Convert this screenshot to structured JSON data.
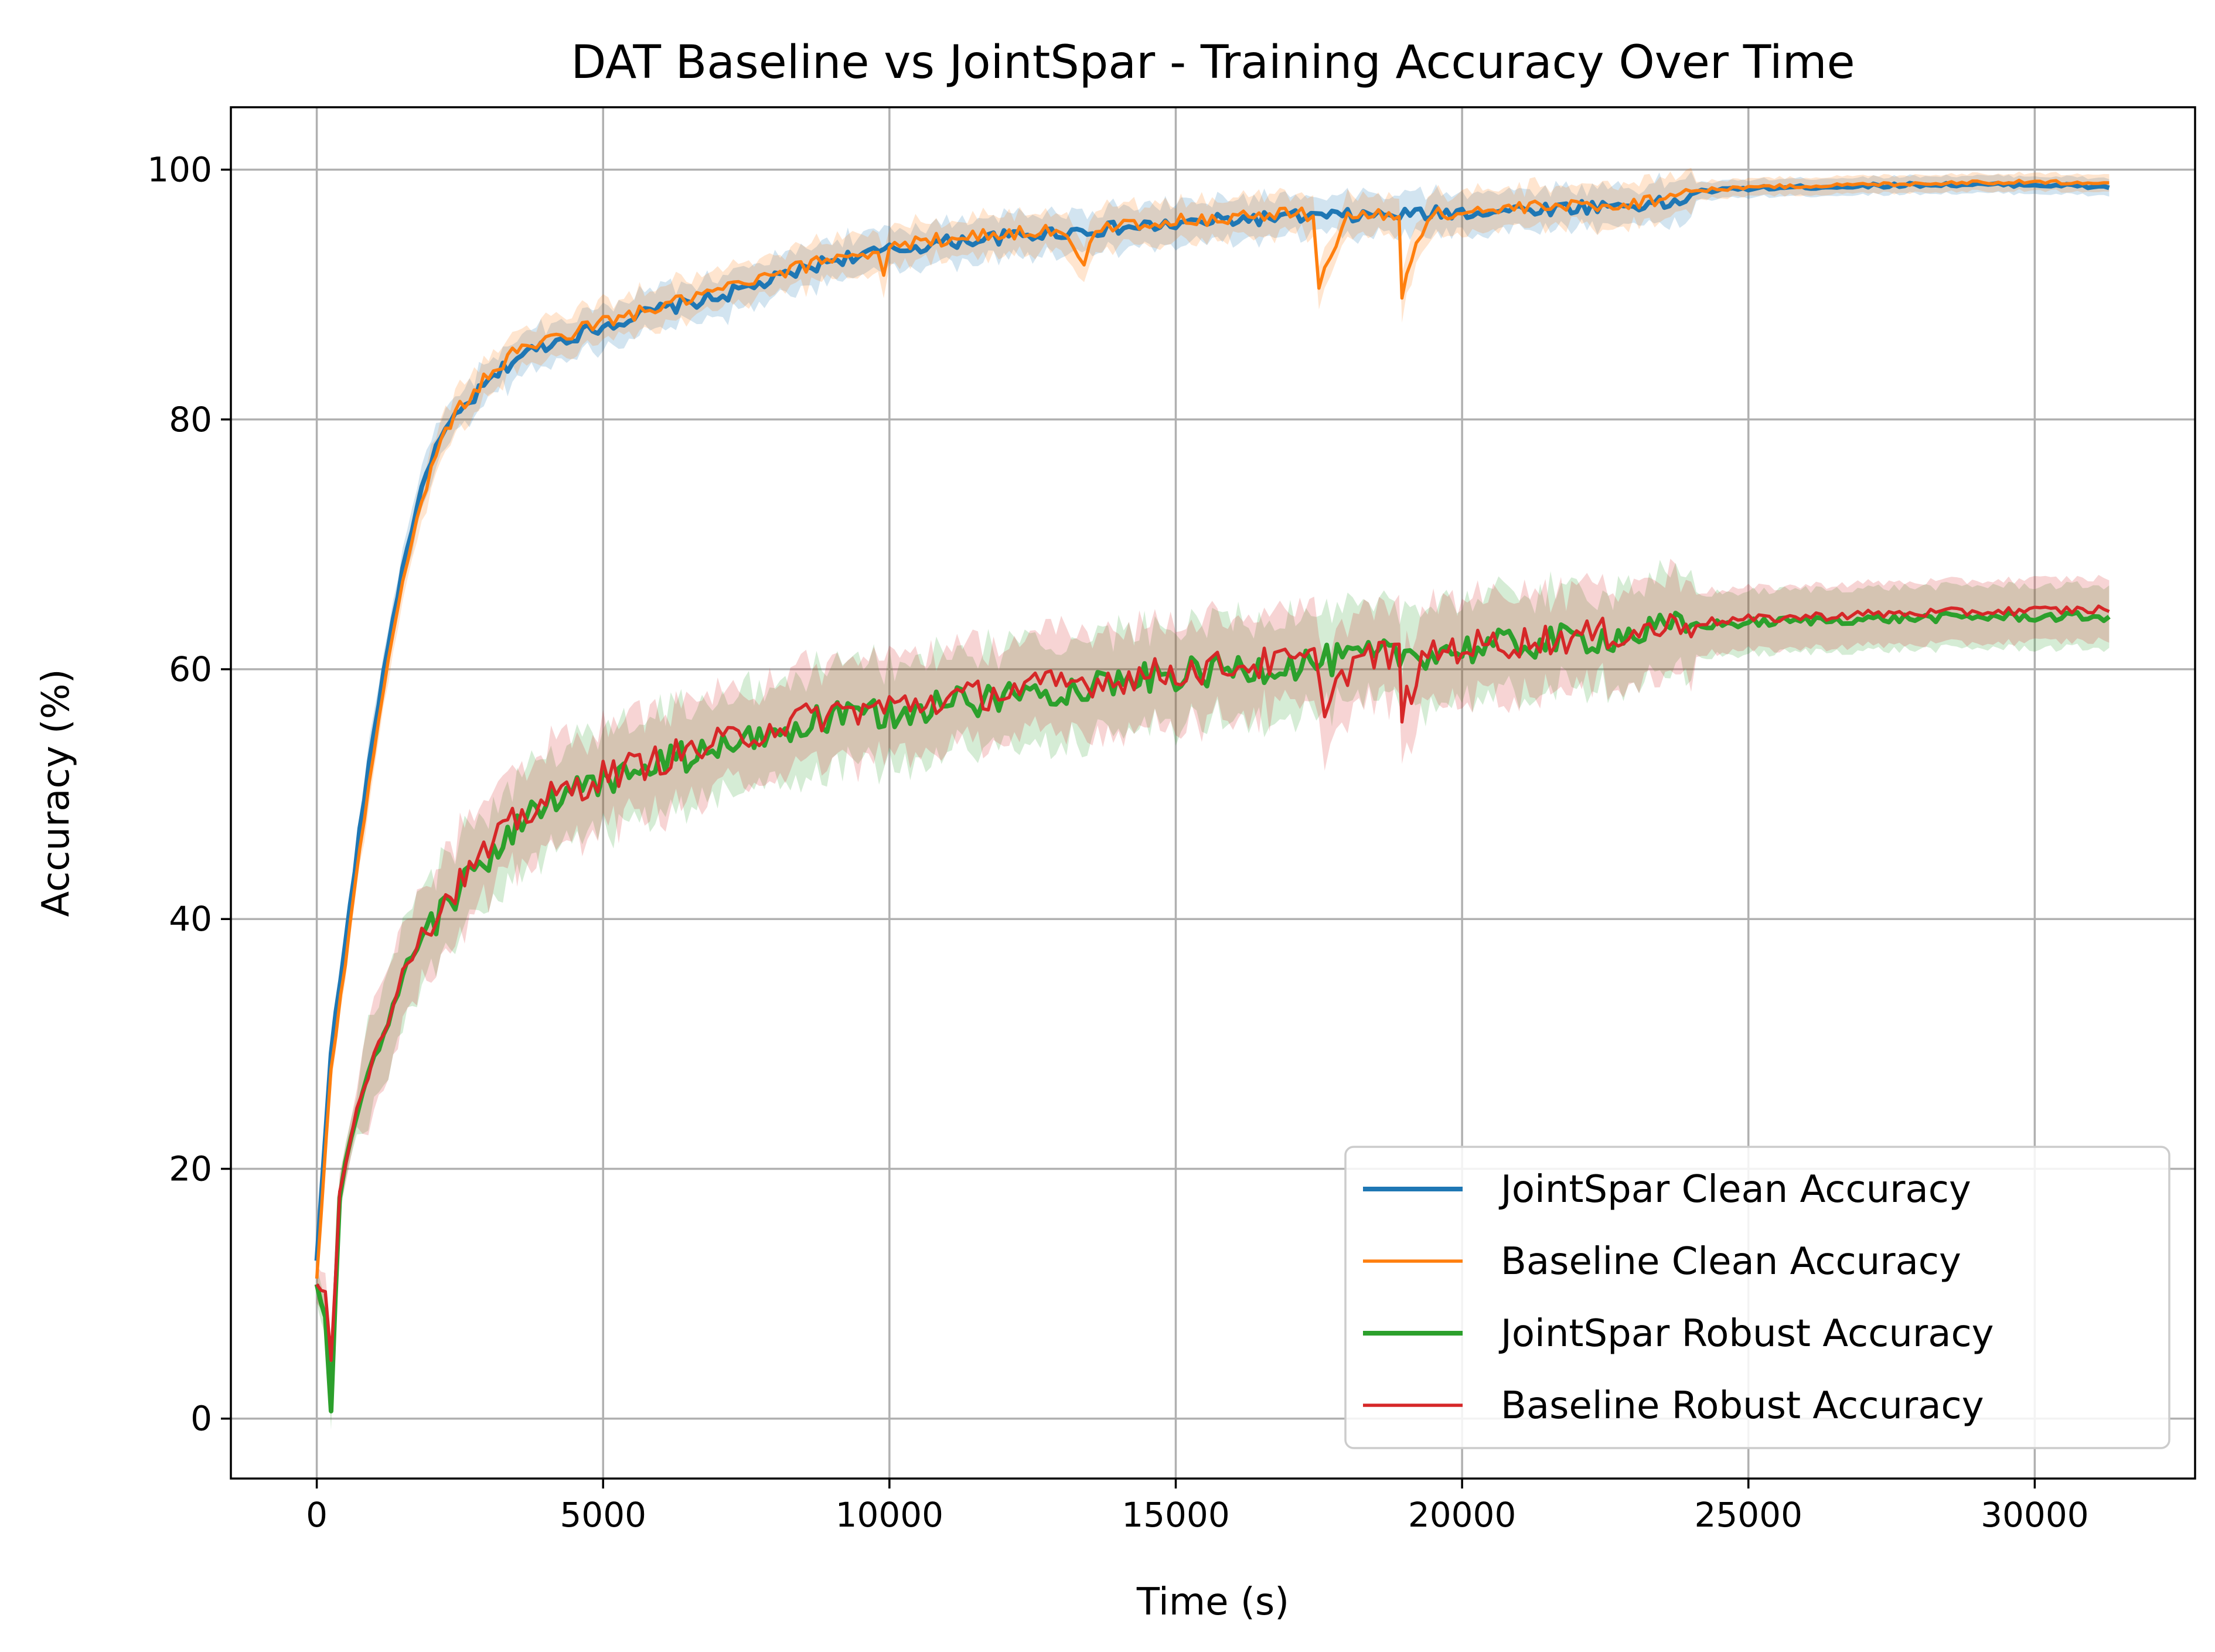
{
  "chart_data": {
    "type": "line",
    "title": "DAT Baseline vs JointSpar - Training Accuracy Over Time",
    "xlabel": "Time (s)",
    "ylabel": "Accuracy (%)",
    "xlim": [
      -1500,
      32800
    ],
    "ylim": [
      -4.8,
      105
    ],
    "xticks": [
      0,
      5000,
      10000,
      15000,
      20000,
      25000,
      30000
    ],
    "xtick_labels": [
      "0",
      "5000",
      "10000",
      "15000",
      "20000",
      "25000",
      "30000"
    ],
    "yticks": [
      0,
      20,
      40,
      60,
      80,
      100
    ],
    "ytick_labels": [
      "0",
      "20",
      "40",
      "60",
      "80",
      "100"
    ],
    "grid": true,
    "legend_position": "bottom-right",
    "series": [
      {
        "name": "JointSpar Clean Accuracy",
        "color": "#1f77b4",
        "x": [
          0,
          250,
          500,
          750,
          1000,
          1250,
          1500,
          1750,
          2000,
          2250,
          2500,
          3000,
          3500,
          4000,
          5000,
          6000,
          7000,
          8000,
          9000,
          10000,
          11000,
          12000,
          12500,
          13000,
          14000,
          15000,
          16000,
          17000,
          18000,
          19000,
          20000,
          21000,
          22000,
          23000,
          23800,
          24000,
          25000,
          26000,
          27000,
          28000,
          29000,
          30000,
          31300
        ],
        "y": [
          12.5,
          29.5,
          38,
          47,
          55,
          62,
          68,
          73,
          77,
          79,
          80.5,
          83,
          85,
          86,
          87.5,
          88.8,
          89.8,
          91.2,
          92.8,
          93.5,
          94.2,
          94.6,
          94.8,
          95,
          95.3,
          95.6,
          96,
          96.2,
          96.3,
          96.4,
          96.6,
          96.8,
          97,
          97.2,
          97.3,
          98.2,
          98.5,
          98.6,
          98.7,
          98.8,
          98.8,
          98.8,
          98.6
        ]
      },
      {
        "name": "Baseline Clean Accuracy",
        "color": "#ff7f0e",
        "x": [
          0,
          250,
          500,
          750,
          1000,
          1250,
          1500,
          1750,
          2000,
          2250,
          2500,
          3000,
          3500,
          4000,
          5000,
          6000,
          7000,
          8000,
          9000,
          9800,
          9900,
          10000,
          11000,
          12000,
          13000,
          13400,
          13600,
          14000,
          15000,
          16000,
          17000,
          17400,
          17500,
          17800,
          18000,
          18900,
          18950,
          19200,
          19500,
          20000,
          21000,
          22000,
          23000,
          24000,
          25000,
          26000,
          27000,
          28000,
          29000,
          30000,
          31300
        ],
        "y": [
          11,
          28,
          36.5,
          45.5,
          53.5,
          61,
          67,
          72,
          76,
          79,
          81,
          83.5,
          85.5,
          86.3,
          87.8,
          89,
          90.3,
          91.5,
          93,
          93.5,
          91.5,
          93.8,
          94.5,
          94.9,
          95.2,
          92,
          95.3,
          95.6,
          95.9,
          96.2,
          96.5,
          96.4,
          91,
          94,
          96.3,
          96.3,
          90,
          94.5,
          96.4,
          96.6,
          96.9,
          97.1,
          97.3,
          98.3,
          98.6,
          98.7,
          98.8,
          98.9,
          99,
          99,
          99
        ]
      },
      {
        "name": "JointSpar Robust Accuracy",
        "color": "#2ca02c",
        "x": [
          0,
          150,
          250,
          400,
          600,
          800,
          1000,
          1250,
          1500,
          1750,
          2000,
          2250,
          2500,
          3000,
          3500,
          4000,
          5000,
          6000,
          7000,
          8000,
          9000,
          10000,
          11000,
          12000,
          13000,
          14000,
          15000,
          16000,
          17000,
          18000,
          19000,
          20000,
          21000,
          22000,
          23000,
          24000,
          25000,
          26000,
          27000,
          28000,
          29000,
          30000,
          31300
        ],
        "y": [
          10.5,
          8,
          1,
          18,
          22.5,
          26,
          28.5,
          31.5,
          35.5,
          37.5,
          39.5,
          41,
          42.5,
          45,
          47.5,
          49,
          51,
          52.5,
          53.5,
          55,
          56,
          56.5,
          57.2,
          57.8,
          58.5,
          59,
          59.5,
          60,
          60.4,
          60.8,
          61.2,
          61.6,
          62,
          62.4,
          62.8,
          63.5,
          63.7,
          63.9,
          64,
          64.1,
          64.2,
          64.2,
          64.2
        ]
      },
      {
        "name": "Baseline Robust Accuracy",
        "color": "#d62728",
        "x": [
          0,
          150,
          250,
          400,
          600,
          800,
          1000,
          1250,
          1500,
          1750,
          2000,
          2250,
          2500,
          3000,
          3500,
          4000,
          5000,
          6000,
          7000,
          8000,
          9000,
          10000,
          11000,
          12000,
          13000,
          14000,
          15000,
          16000,
          17000,
          17500,
          17600,
          17900,
          18200,
          18900,
          18950,
          19200,
          19500,
          20000,
          21000,
          22000,
          23000,
          24000,
          25000,
          26000,
          27000,
          28000,
          29000,
          30000,
          31300
        ],
        "y": [
          10.5,
          10,
          4.5,
          18.5,
          23,
          26.5,
          29,
          32,
          36,
          38,
          40,
          41.5,
          43,
          45.5,
          48,
          49.5,
          51.5,
          52.8,
          54,
          55.5,
          56.5,
          57,
          57.6,
          58.2,
          58.8,
          59.3,
          59.8,
          60.3,
          60.6,
          60.6,
          57,
          59.5,
          60.9,
          61.2,
          56.5,
          59.5,
          61.4,
          61.8,
          62.2,
          62.6,
          63,
          63.7,
          64,
          64.2,
          64.4,
          64.5,
          64.6,
          64.7,
          64.8
        ]
      }
    ]
  }
}
